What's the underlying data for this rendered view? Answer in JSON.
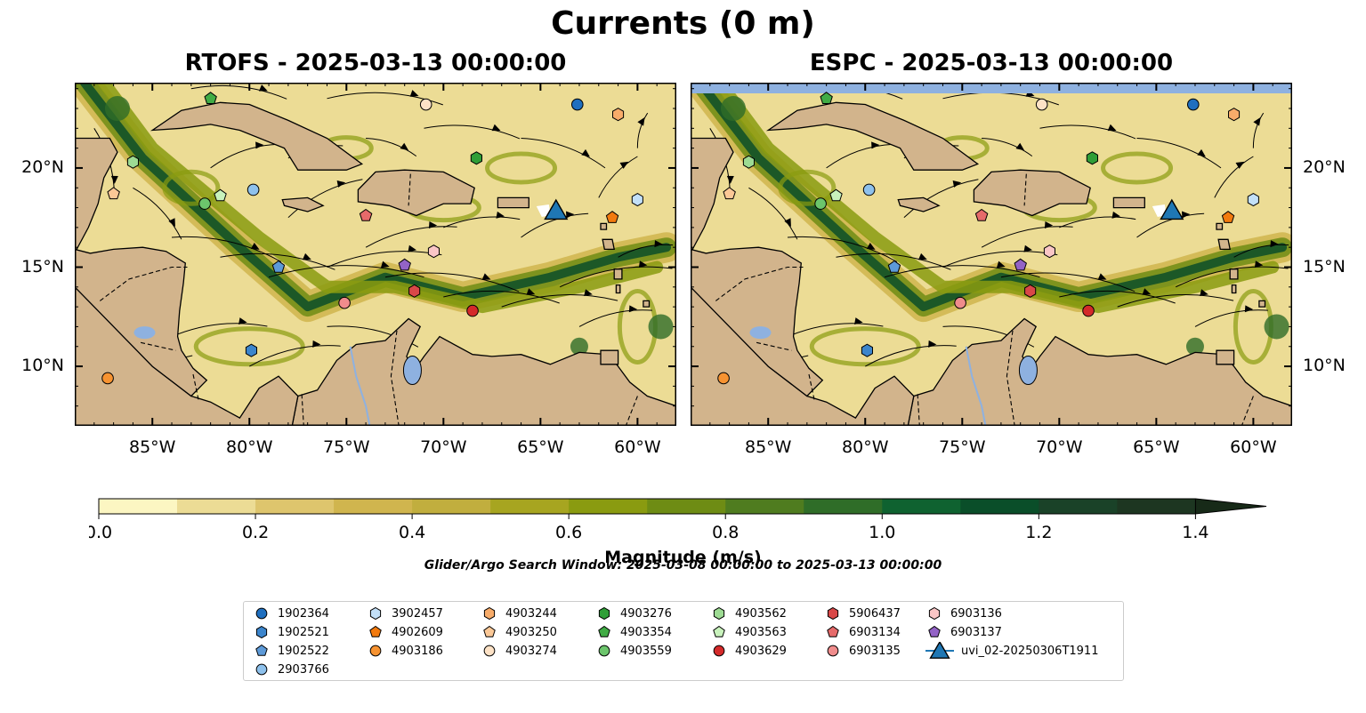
{
  "figure": {
    "suptitle": "Currents (0 m)",
    "panels": [
      {
        "id": "rtofs",
        "title": "RTOFS - 2025-03-13 00:00:00"
      },
      {
        "id": "espc",
        "title": "ESPC - 2025-03-13 00:00:00"
      }
    ],
    "lon_ticks": [
      "85°W",
      "80°W",
      "75°W",
      "70°W",
      "65°W",
      "60°W"
    ],
    "lat_ticks": [
      "20°N",
      "15°N",
      "10°N"
    ],
    "colorbar": {
      "label": "Magnitude (m/s)",
      "ticks": [
        "0.0",
        "0.2",
        "0.4",
        "0.6",
        "0.8",
        "1.0",
        "1.2",
        "1.4"
      ],
      "range": [
        0.0,
        1.5
      ],
      "colors": [
        "#fcf6c2",
        "#ecdc95",
        "#dec56d",
        "#d0b54e",
        "#c1ae3e",
        "#a7a520",
        "#8a9b10",
        "#6e8c14",
        "#4f7c1f",
        "#2f6d28",
        "#0f6230",
        "#0a4e29",
        "#1a4228",
        "#1d3621",
        "#172a18"
      ],
      "extend": "max"
    },
    "search_window": "Glider/Argo Search Window: 2025-03-08 00:00:00 to 2025-03-13 00:00:00",
    "land_color": "#d2b48c",
    "lake_color": "#8eb1e0"
  },
  "legend": {
    "items": [
      {
        "label": "1902364",
        "marker": "circle",
        "color": "#1f6fbf"
      },
      {
        "label": "1902521",
        "marker": "hexagon",
        "color": "#3c85cc"
      },
      {
        "label": "1902522",
        "marker": "pentagon",
        "color": "#5d9ad8"
      },
      {
        "label": "2903766",
        "marker": "circle",
        "color": "#8ec1ec"
      },
      {
        "label": "3902457",
        "marker": "hexagon",
        "color": "#c3e0f8"
      },
      {
        "label": "4902609",
        "marker": "pentagon",
        "color": "#f27a0e"
      },
      {
        "label": "4903186",
        "marker": "circle",
        "color": "#f79331"
      },
      {
        "label": "4903244",
        "marker": "hexagon",
        "color": "#f8ac6a"
      },
      {
        "label": "4903250",
        "marker": "pentagon",
        "color": "#fbc896"
      },
      {
        "label": "4903274",
        "marker": "circle",
        "color": "#fde2c6"
      },
      {
        "label": "4903276",
        "marker": "hexagon",
        "color": "#2f9e37"
      },
      {
        "label": "4903354",
        "marker": "pentagon",
        "color": "#41ac45"
      },
      {
        "label": "4903559",
        "marker": "circle",
        "color": "#6cc56c"
      },
      {
        "label": "4903562",
        "marker": "hexagon",
        "color": "#9ddb93"
      },
      {
        "label": "4903563",
        "marker": "pentagon",
        "color": "#c8f2bc"
      },
      {
        "label": "4903629",
        "marker": "circle",
        "color": "#d42a2a"
      },
      {
        "label": "5906437",
        "marker": "hexagon",
        "color": "#d94848"
      },
      {
        "label": "6903134",
        "marker": "pentagon",
        "color": "#e66a6a"
      },
      {
        "label": "6903135",
        "marker": "circle",
        "color": "#f08c8c"
      },
      {
        "label": "6903136",
        "marker": "hexagon",
        "color": "#fac6c6"
      },
      {
        "label": "6903137",
        "marker": "pentagon",
        "color": "#9363c6"
      },
      {
        "label": "uvi_02-20250306T1911",
        "marker": "triangle",
        "color": "#1f77b4"
      }
    ]
  },
  "floats": [
    {
      "id": "1902364",
      "lon": -63.1,
      "lat": 23.2
    },
    {
      "id": "1902521",
      "lon": -79.9,
      "lat": 10.8
    },
    {
      "id": "1902522",
      "lon": -78.5,
      "lat": 15.0
    },
    {
      "id": "2903766",
      "lon": -79.8,
      "lat": 18.9
    },
    {
      "id": "3902457",
      "lon": -60.0,
      "lat": 18.4
    },
    {
      "id": "4902609",
      "lon": -61.3,
      "lat": 17.5
    },
    {
      "id": "4903186",
      "lon": -87.3,
      "lat": 9.4
    },
    {
      "id": "4903244",
      "lon": -61.0,
      "lat": 22.7
    },
    {
      "id": "4903250",
      "lon": -87.0,
      "lat": 18.7
    },
    {
      "id": "4903274",
      "lon": -70.9,
      "lat": 23.2
    },
    {
      "id": "4903276",
      "lon": -68.3,
      "lat": 20.5
    },
    {
      "id": "4903354",
      "lon": -82.0,
      "lat": 23.5
    },
    {
      "id": "4903559",
      "lon": -82.3,
      "lat": 18.2
    },
    {
      "id": "4903562",
      "lon": -86.0,
      "lat": 20.3
    },
    {
      "id": "4903563",
      "lon": -81.5,
      "lat": 18.6
    },
    {
      "id": "4903629",
      "lon": -68.5,
      "lat": 12.8
    },
    {
      "id": "5906437",
      "lon": -71.5,
      "lat": 13.8
    },
    {
      "id": "6903134",
      "lon": -74.0,
      "lat": 17.6
    },
    {
      "id": "6903135",
      "lon": -75.1,
      "lat": 13.2
    },
    {
      "id": "6903136",
      "lon": -70.5,
      "lat": 15.8
    },
    {
      "id": "6903137",
      "lon": -72.0,
      "lat": 15.1
    }
  ],
  "glider": {
    "id": "uvi_02-20250306T1911",
    "lon": -64.2,
    "lat": 17.8
  }
}
